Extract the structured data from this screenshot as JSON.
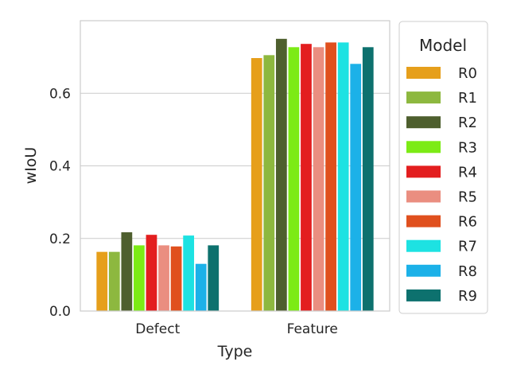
{
  "chart_data": {
    "type": "bar",
    "title": "",
    "xlabel": "Type",
    "ylabel": "wIoU",
    "categories": [
      "Defect",
      "Feature"
    ],
    "ylim": [
      0,
      0.8
    ],
    "yticks": [
      0.0,
      0.2,
      0.4,
      0.6
    ],
    "ytick_labels": [
      "0.0",
      "0.2",
      "0.4",
      "0.6"
    ],
    "grid": "horizontal",
    "legend": {
      "title": "Model",
      "placement": "outside-right"
    },
    "series": [
      {
        "name": "R0",
        "color": "#E69F1B",
        "values": [
          0.163,
          0.697
        ]
      },
      {
        "name": "R1",
        "color": "#8DB83F",
        "values": [
          0.163,
          0.705
        ]
      },
      {
        "name": "R2",
        "color": "#4E5F2E",
        "values": [
          0.217,
          0.75
        ]
      },
      {
        "name": "R3",
        "color": "#7CEB15",
        "values": [
          0.181,
          0.727
        ]
      },
      {
        "name": "R4",
        "color": "#E31E1F",
        "values": [
          0.21,
          0.736
        ]
      },
      {
        "name": "R5",
        "color": "#EA8E80",
        "values": [
          0.181,
          0.727
        ]
      },
      {
        "name": "R6",
        "color": "#E0501E",
        "values": [
          0.178,
          0.74
        ]
      },
      {
        "name": "R7",
        "color": "#1DE2E2",
        "values": [
          0.208,
          0.74
        ]
      },
      {
        "name": "R8",
        "color": "#1CB1E8",
        "values": [
          0.13,
          0.681
        ]
      },
      {
        "name": "R9",
        "color": "#0D716E",
        "values": [
          0.181,
          0.727
        ]
      }
    ]
  }
}
